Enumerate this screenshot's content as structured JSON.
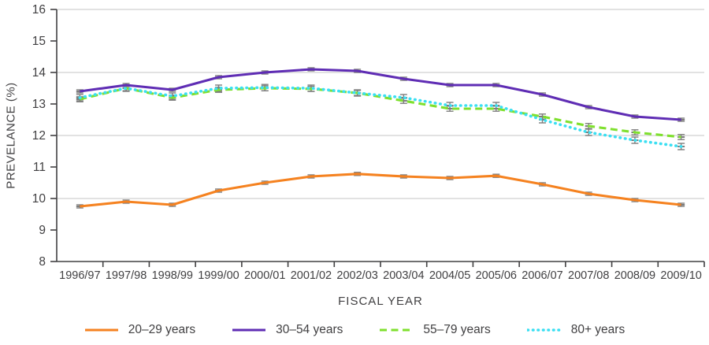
{
  "chart_data": {
    "type": "line",
    "title": "",
    "xlabel": "FISCAL YEAR",
    "ylabel": "PREVELANCE (%)",
    "ylim": [
      8,
      16
    ],
    "y_ticks": [
      8,
      9,
      10,
      11,
      12,
      13,
      14,
      15,
      16
    ],
    "gridlines": [
      10,
      12,
      14,
      16
    ],
    "grid": "horizontal",
    "legend_position": "bottom",
    "categories": [
      "1996/97",
      "1997/98",
      "1998/99",
      "1999/00",
      "2000/01",
      "2001/02",
      "2002/03",
      "2003/04",
      "2004/05",
      "2005/06",
      "2006/07",
      "2007/08",
      "2008/09",
      "2009/10"
    ],
    "series": [
      {
        "name": "20–29 years",
        "color": "#F58220",
        "style": "solid",
        "error": 0.05,
        "values": [
          9.75,
          9.9,
          9.8,
          10.25,
          10.5,
          10.7,
          10.78,
          10.7,
          10.65,
          10.72,
          10.45,
          10.15,
          9.95,
          9.8
        ]
      },
      {
        "name": "30–54 years",
        "color": "#5F2DB4",
        "style": "solid",
        "error": 0.05,
        "values": [
          13.4,
          13.6,
          13.45,
          13.85,
          14.0,
          14.1,
          14.05,
          13.8,
          13.6,
          13.6,
          13.3,
          12.9,
          12.6,
          12.5
        ]
      },
      {
        "name": "55–79 years",
        "color": "#7FE02E",
        "style": "dashed",
        "error": 0.08,
        "values": [
          13.15,
          13.5,
          13.2,
          13.45,
          13.5,
          13.48,
          13.35,
          13.1,
          12.85,
          12.85,
          12.6,
          12.3,
          12.1,
          11.95
        ]
      },
      {
        "name": "80+ years",
        "color": "#3BDFF2",
        "style": "dotted",
        "error": 0.1,
        "values": [
          13.2,
          13.5,
          13.25,
          13.5,
          13.52,
          13.5,
          13.35,
          13.2,
          12.95,
          12.95,
          12.5,
          12.1,
          11.85,
          11.65
        ]
      }
    ],
    "colors": {
      "axis": "#414042",
      "grid": "#D9D9D9",
      "error_bar": "#7D7D7D",
      "text": "#414042"
    }
  }
}
